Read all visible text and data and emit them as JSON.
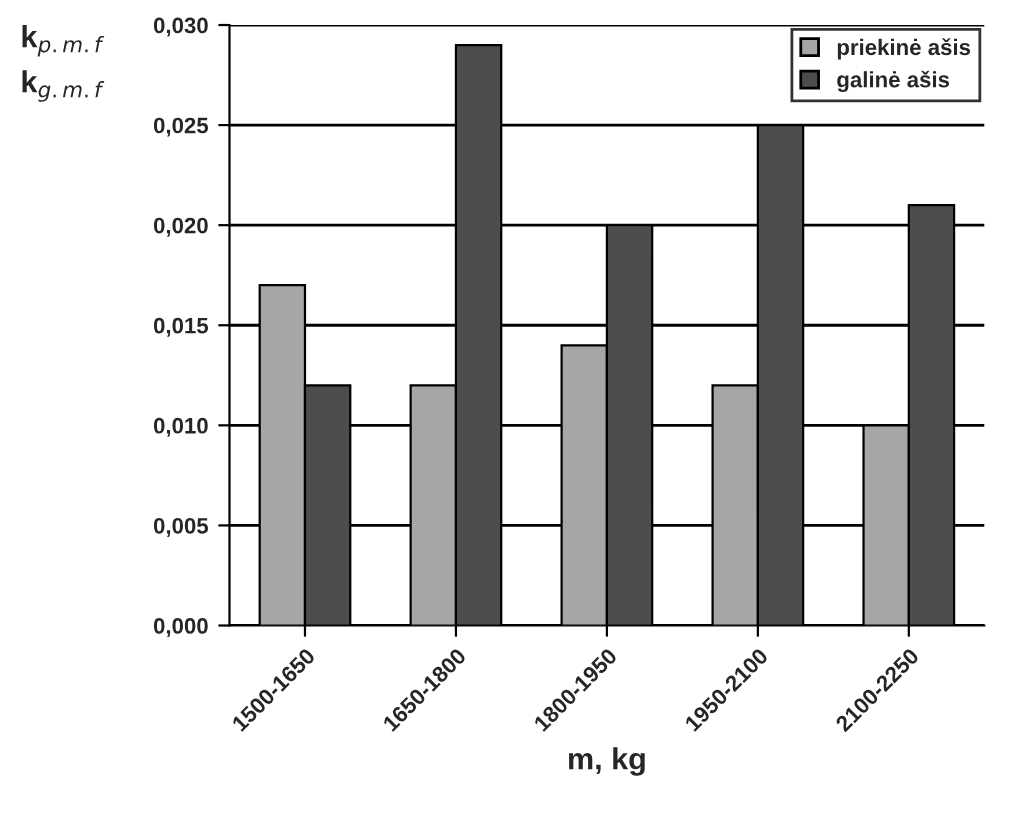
{
  "chart_data": {
    "type": "bar",
    "xlabel": "m, kg",
    "ylabel": "k$_{p.m.f}$\nk$_{g.m.f}$",
    "categories": [
      "1500-1650",
      "1650-1800",
      "1800-1950",
      "1950-2100",
      "2100-2250"
    ],
    "series": [
      {
        "name": "priekinė ašis",
        "color": "#a6a6a6",
        "values": [
          0.017,
          0.012,
          0.014,
          0.012,
          0.01
        ]
      },
      {
        "name": "galinė ašis",
        "color": "#4d4d4d",
        "values": [
          0.012,
          0.029,
          0.02,
          0.025,
          0.021
        ]
      }
    ],
    "ylim": [
      0,
      0.03
    ],
    "yticks": [
      {
        "value": 0,
        "label": "0,000"
      },
      {
        "value": 0.005,
        "label": "0,005"
      },
      {
        "value": 0.01,
        "label": "0,010"
      },
      {
        "value": 0.015,
        "label": "0,015"
      },
      {
        "value": 0.02,
        "label": "0,020"
      },
      {
        "value": 0.025,
        "label": "0,025"
      },
      {
        "value": 0.03,
        "label": "0,030"
      }
    ],
    "grid": "y",
    "legend": "top right"
  }
}
